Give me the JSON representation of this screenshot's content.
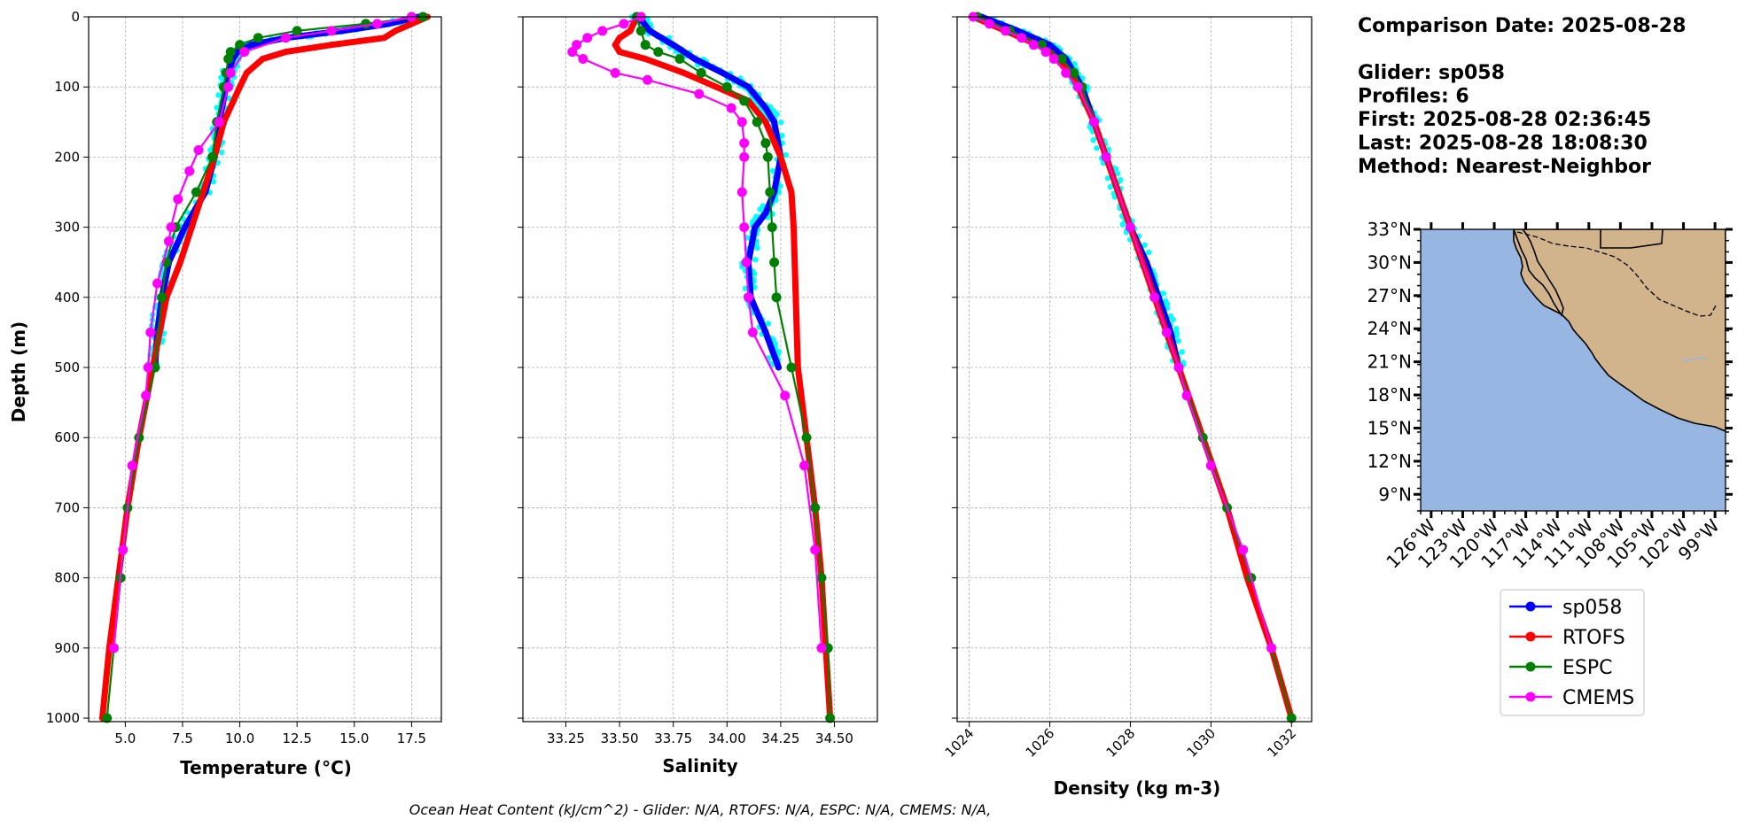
{
  "figure": {
    "info_lines": [
      "Comparison Date: 2025-08-28",
      "",
      "Glider: sp058",
      "Profiles: 6",
      "First: 2025-08-28 02:36:45",
      "Last: 2025-08-28 18:08:30",
      "Method: Nearest-Neighbor"
    ],
    "footer": "Ocean Heat Content (kJ/cm^2) - Glider: N/A,  RTOFS: N/A,  ESPC: N/A,  CMEMS: N/A,",
    "legend": [
      {
        "name": "sp058",
        "color": "#0000ff"
      },
      {
        "name": "RTOFS",
        "color": "#ff0000"
      },
      {
        "name": "ESPC",
        "color": "#008000"
      },
      {
        "name": "CMEMS",
        "color": "#ff00ff"
      }
    ],
    "colors": {
      "glider_raw": "#00ffff",
      "ocean": "#97b6e1",
      "land": "#d2b48c"
    }
  },
  "map": {
    "lat_labels": [
      "33°N",
      "30°N",
      "27°N",
      "24°N",
      "21°N",
      "18°N",
      "15°N",
      "12°N",
      "9°N"
    ],
    "lat_values": [
      33,
      30,
      27,
      24,
      21,
      18,
      15,
      12,
      9
    ],
    "lon_labels": [
      "126°W",
      "123°W",
      "120°W",
      "117°W",
      "114°W",
      "111°W",
      "108°W",
      "105°W",
      "102°W",
      "99°W"
    ],
    "lon_values": [
      -126,
      -123,
      -120,
      -117,
      -114,
      -111,
      -108,
      -105,
      -102,
      -99
    ],
    "extent": {
      "lon": [
        -127,
        -98
      ],
      "lat": [
        7.5,
        33
      ]
    }
  },
  "chart_data": [
    {
      "type": "line",
      "xlabel": "Temperature (°C)",
      "ylabel": "Depth (m)",
      "xlim": [
        3.4,
        18.8
      ],
      "ylim": [
        1005,
        0
      ],
      "xticks": [
        5.0,
        7.5,
        10.0,
        12.5,
        15.0,
        17.5
      ],
      "xtick_labels": [
        "5.0",
        "7.5",
        "10.0",
        "12.5",
        "15.0",
        "17.5"
      ],
      "yticks": [
        0,
        100,
        200,
        300,
        400,
        500,
        600,
        700,
        800,
        900,
        1000
      ],
      "grid": true,
      "series": [
        {
          "name": "sp058",
          "depth": [
            0,
            10,
            20,
            30,
            40,
            50,
            60,
            80,
            100,
            150,
            200,
            250,
            300,
            350,
            400,
            450,
            500
          ],
          "values": [
            17.8,
            16.5,
            14.5,
            12.0,
            10.5,
            9.9,
            9.7,
            9.5,
            9.4,
            9.1,
            8.9,
            8.5,
            7.6,
            6.9,
            6.6,
            6.4,
            6.3
          ]
        },
        {
          "name": "RTOFS",
          "depth": [
            0,
            10,
            20,
            30,
            40,
            50,
            60,
            80,
            100,
            150,
            200,
            250,
            300,
            350,
            400,
            450,
            500,
            600,
            700,
            800,
            900,
            1000
          ],
          "values": [
            18.2,
            17.5,
            16.8,
            16.3,
            14.0,
            12.0,
            11.0,
            10.3,
            10.0,
            9.3,
            8.9,
            8.4,
            7.9,
            7.4,
            6.8,
            6.5,
            6.2,
            5.6,
            5.1,
            4.7,
            4.3,
            4.0
          ]
        },
        {
          "name": "ESPC",
          "depth": [
            0,
            10,
            20,
            30,
            40,
            50,
            60,
            80,
            100,
            150,
            200,
            250,
            300,
            350,
            400,
            500,
            600,
            700,
            800,
            900,
            1000
          ],
          "values": [
            18.0,
            15.5,
            12.5,
            10.8,
            10.0,
            9.6,
            9.5,
            9.4,
            9.3,
            9.0,
            8.8,
            8.1,
            7.2,
            6.8,
            6.6,
            6.3,
            5.6,
            5.1,
            4.8,
            4.5,
            4.2
          ]
        },
        {
          "name": "CMEMS",
          "depth": [
            0,
            10,
            20,
            30,
            50,
            80,
            100,
            150,
            190,
            220,
            260,
            300,
            320,
            380,
            450,
            500,
            540,
            640,
            760,
            900
          ],
          "values": [
            17.5,
            16.0,
            14.0,
            12.0,
            10.2,
            9.6,
            9.5,
            9.1,
            8.2,
            7.8,
            7.3,
            7.0,
            6.9,
            6.4,
            6.1,
            6.0,
            5.9,
            5.3,
            4.9,
            4.5
          ]
        }
      ]
    },
    {
      "type": "line",
      "xlabel": "Salinity",
      "xlim": [
        33.05,
        34.7
      ],
      "ylim": [
        1005,
        0
      ],
      "xticks": [
        33.25,
        33.5,
        33.75,
        34.0,
        34.25,
        34.5
      ],
      "xtick_labels": [
        "33.25",
        "33.50",
        "33.75",
        "34.00",
        "34.25",
        "34.50"
      ],
      "grid": true,
      "series": [
        {
          "name": "sp058",
          "depth": [
            0,
            20,
            40,
            60,
            80,
            100,
            130,
            150,
            200,
            250,
            280,
            300,
            350,
            400,
            450,
            500
          ],
          "values": [
            33.59,
            33.64,
            33.75,
            33.85,
            33.98,
            34.1,
            34.18,
            34.22,
            34.25,
            34.22,
            34.18,
            34.13,
            34.1,
            34.11,
            34.18,
            34.24
          ]
        },
        {
          "name": "RTOFS",
          "depth": [
            0,
            20,
            30,
            40,
            50,
            60,
            80,
            100,
            120,
            150,
            200,
            250,
            300,
            400,
            500,
            600,
            700,
            800,
            900,
            1000
          ],
          "values": [
            33.58,
            33.55,
            33.5,
            33.48,
            33.5,
            33.62,
            33.8,
            33.95,
            34.1,
            34.18,
            34.25,
            34.3,
            34.31,
            34.32,
            34.33,
            34.37,
            34.41,
            34.44,
            34.46,
            34.48
          ]
        },
        {
          "name": "ESPC",
          "depth": [
            0,
            20,
            40,
            50,
            60,
            80,
            100,
            120,
            150,
            180,
            200,
            250,
            300,
            350,
            400,
            500,
            600,
            700,
            800,
            900,
            1000
          ],
          "values": [
            33.58,
            33.6,
            33.62,
            33.68,
            33.78,
            33.88,
            34.0,
            34.08,
            34.14,
            34.18,
            34.19,
            34.2,
            34.21,
            34.22,
            34.23,
            34.3,
            34.37,
            34.41,
            34.44,
            34.47,
            34.48
          ]
        },
        {
          "name": "CMEMS",
          "depth": [
            0,
            10,
            20,
            30,
            40,
            50,
            60,
            80,
            90,
            110,
            130,
            150,
            180,
            200,
            250,
            300,
            350,
            400,
            450,
            540,
            640,
            760,
            900
          ],
          "values": [
            33.6,
            33.52,
            33.42,
            33.35,
            33.3,
            33.28,
            33.33,
            33.48,
            33.63,
            33.87,
            34.02,
            34.07,
            34.08,
            34.08,
            34.07,
            34.08,
            34.09,
            34.1,
            34.12,
            34.27,
            34.36,
            34.41,
            34.44
          ]
        }
      ]
    },
    {
      "type": "line",
      "xlabel": "Density (kg m-3)",
      "xlim": [
        1023.7,
        1032.5
      ],
      "ylim": [
        1005,
        0
      ],
      "xticks": [
        1024,
        1026,
        1028,
        1030,
        1032
      ],
      "xtick_labels": [
        "1024",
        "1026",
        "1028",
        "1030",
        "1032"
      ],
      "grid": true,
      "series": [
        {
          "name": "sp058",
          "depth": [
            0,
            20,
            40,
            60,
            80,
            100,
            150,
            200,
            250,
            300,
            350,
            400,
            450,
            500
          ],
          "values": [
            1024.3,
            1025.2,
            1026.0,
            1026.4,
            1026.6,
            1026.8,
            1027.1,
            1027.4,
            1027.7,
            1028.0,
            1028.4,
            1028.7,
            1029.0,
            1029.2
          ]
        },
        {
          "name": "RTOFS",
          "depth": [
            0,
            10,
            20,
            30,
            40,
            50,
            60,
            80,
            100,
            150,
            200,
            250,
            300,
            400,
            500,
            600,
            700,
            800,
            900,
            1000
          ],
          "values": [
            1024.1,
            1024.5,
            1024.9,
            1025.3,
            1025.7,
            1026.0,
            1026.2,
            1026.5,
            1026.7,
            1027.1,
            1027.4,
            1027.7,
            1028.0,
            1028.6,
            1029.2,
            1029.8,
            1030.4,
            1030.9,
            1031.5,
            1032.0
          ]
        },
        {
          "name": "ESPC",
          "depth": [
            0,
            20,
            40,
            60,
            80,
            100,
            150,
            200,
            300,
            400,
            500,
            600,
            700,
            800,
            900,
            1000
          ],
          "values": [
            1024.2,
            1025.0,
            1025.8,
            1026.3,
            1026.6,
            1026.8,
            1027.1,
            1027.4,
            1028.0,
            1028.6,
            1029.2,
            1029.8,
            1030.4,
            1031.0,
            1031.5,
            1032.0
          ]
        },
        {
          "name": "CMEMS",
          "depth": [
            0,
            10,
            20,
            30,
            40,
            50,
            60,
            80,
            100,
            150,
            200,
            300,
            400,
            450,
            500,
            540,
            640,
            760,
            900
          ],
          "values": [
            1024.1,
            1024.5,
            1024.9,
            1025.3,
            1025.6,
            1025.9,
            1026.1,
            1026.4,
            1026.7,
            1027.1,
            1027.4,
            1028.0,
            1028.6,
            1028.9,
            1029.2,
            1029.4,
            1030.0,
            1030.8,
            1031.5
          ]
        }
      ]
    }
  ]
}
